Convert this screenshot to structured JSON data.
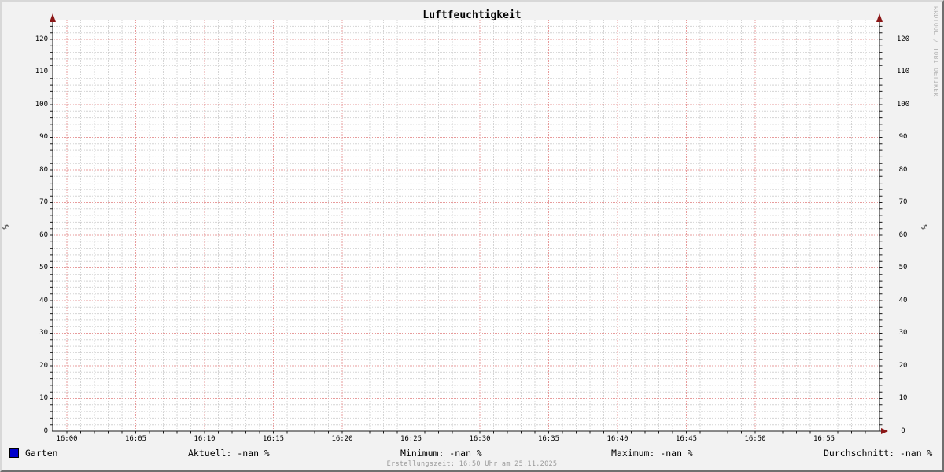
{
  "title": "Luftfeuchtigkeit",
  "watermark": "RRDTOOL / TOBI OETIKER",
  "footer": {
    "created": "Erstellungszeit: 16:50 Uhr am 25.11.2025"
  },
  "y_axis": {
    "label": "%",
    "ticks": [
      0,
      10,
      20,
      30,
      40,
      50,
      60,
      70,
      80,
      90,
      100,
      110,
      120
    ],
    "minor_step": 2
  },
  "x_axis": {
    "ticks": [
      "16:00",
      "16:05",
      "16:10",
      "16:15",
      "16:20",
      "16:25",
      "16:30",
      "16:35",
      "16:40",
      "16:45",
      "16:50",
      "16:55"
    ],
    "minor_per_major": 5
  },
  "legend": {
    "series_label": "Garten",
    "series_color": "#0000cc",
    "stats": [
      {
        "label": "Aktuell",
        "value": "-nan %",
        "text": "Aktuell: -nan %"
      },
      {
        "label": "Minimum",
        "value": "-nan %",
        "text": "Minimum: -nan %"
      },
      {
        "label": "Maximum",
        "value": "-nan %",
        "text": "Maximum: -nan %"
      },
      {
        "label": "Durchschnitt",
        "value": "-nan %",
        "text": "Durchschnitt: -nan %"
      }
    ]
  },
  "colors": {
    "background": "#f2f2f2",
    "plot_background": "#ffffff",
    "grid_minor": "#d4d4d4",
    "grid_major": "#e79b9b",
    "axis": "#1a1a1a",
    "arrow": "#8b1717",
    "series": "#0000cc",
    "watermark_text": "#b4b4b4",
    "footer_text": "#9a9a9a"
  },
  "chart_data": {
    "type": "line",
    "title": "Luftfeuchtigkeit",
    "xlabel": "",
    "ylabel": "%",
    "x_ticks": [
      "16:00",
      "16:05",
      "16:10",
      "16:15",
      "16:20",
      "16:25",
      "16:30",
      "16:35",
      "16:40",
      "16:45",
      "16:50",
      "16:55"
    ],
    "y_ticks": [
      0,
      10,
      20,
      30,
      40,
      50,
      60,
      70,
      80,
      90,
      100,
      110,
      120
    ],
    "ylim": [
      0,
      125
    ],
    "grid": true,
    "legend_position": "bottom-left",
    "series": [
      {
        "name": "Garten",
        "color": "#0000cc",
        "values": []
      }
    ],
    "stats": {
      "aktuell": "-nan %",
      "minimum": "-nan %",
      "maximum": "-nan %",
      "durchschnitt": "-nan %"
    }
  }
}
